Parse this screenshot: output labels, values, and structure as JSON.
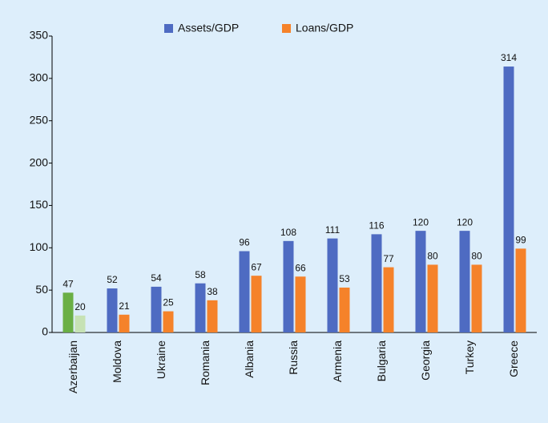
{
  "chart_data": {
    "type": "bar",
    "categories": [
      "Azerbaijan",
      "Moldova",
      "Ukraine",
      "Romania",
      "Albania",
      "Russia",
      "Armenia",
      "Bulgaria",
      "Georgia",
      "Turkey",
      "Greece"
    ],
    "series": [
      {
        "name": "Assets/GDP",
        "color": "#4e6bc2",
        "colors": [
          "#6aaf45",
          "#4e6bc2",
          "#4e6bc2",
          "#4e6bc2",
          "#4e6bc2",
          "#4e6bc2",
          "#4e6bc2",
          "#4e6bc2",
          "#4e6bc2",
          "#4e6bc2",
          "#4e6bc2"
        ],
        "values": [
          47,
          52,
          54,
          58,
          96,
          108,
          111,
          116,
          120,
          120,
          314
        ]
      },
      {
        "name": "Loans/GDP",
        "color": "#f5822a",
        "colors": [
          "#c6e2b4",
          "#f5822a",
          "#f5822a",
          "#f5822a",
          "#f5822a",
          "#f5822a",
          "#f5822a",
          "#f5822a",
          "#f5822a",
          "#f5822a",
          "#f5822a"
        ],
        "values": [
          20,
          21,
          25,
          38,
          67,
          66,
          53,
          77,
          80,
          80,
          99
        ]
      }
    ],
    "ylim": [
      0,
      350
    ],
    "yticks": [
      0,
      50,
      100,
      150,
      200,
      250,
      300,
      350
    ],
    "grid": false,
    "legend": "top"
  }
}
